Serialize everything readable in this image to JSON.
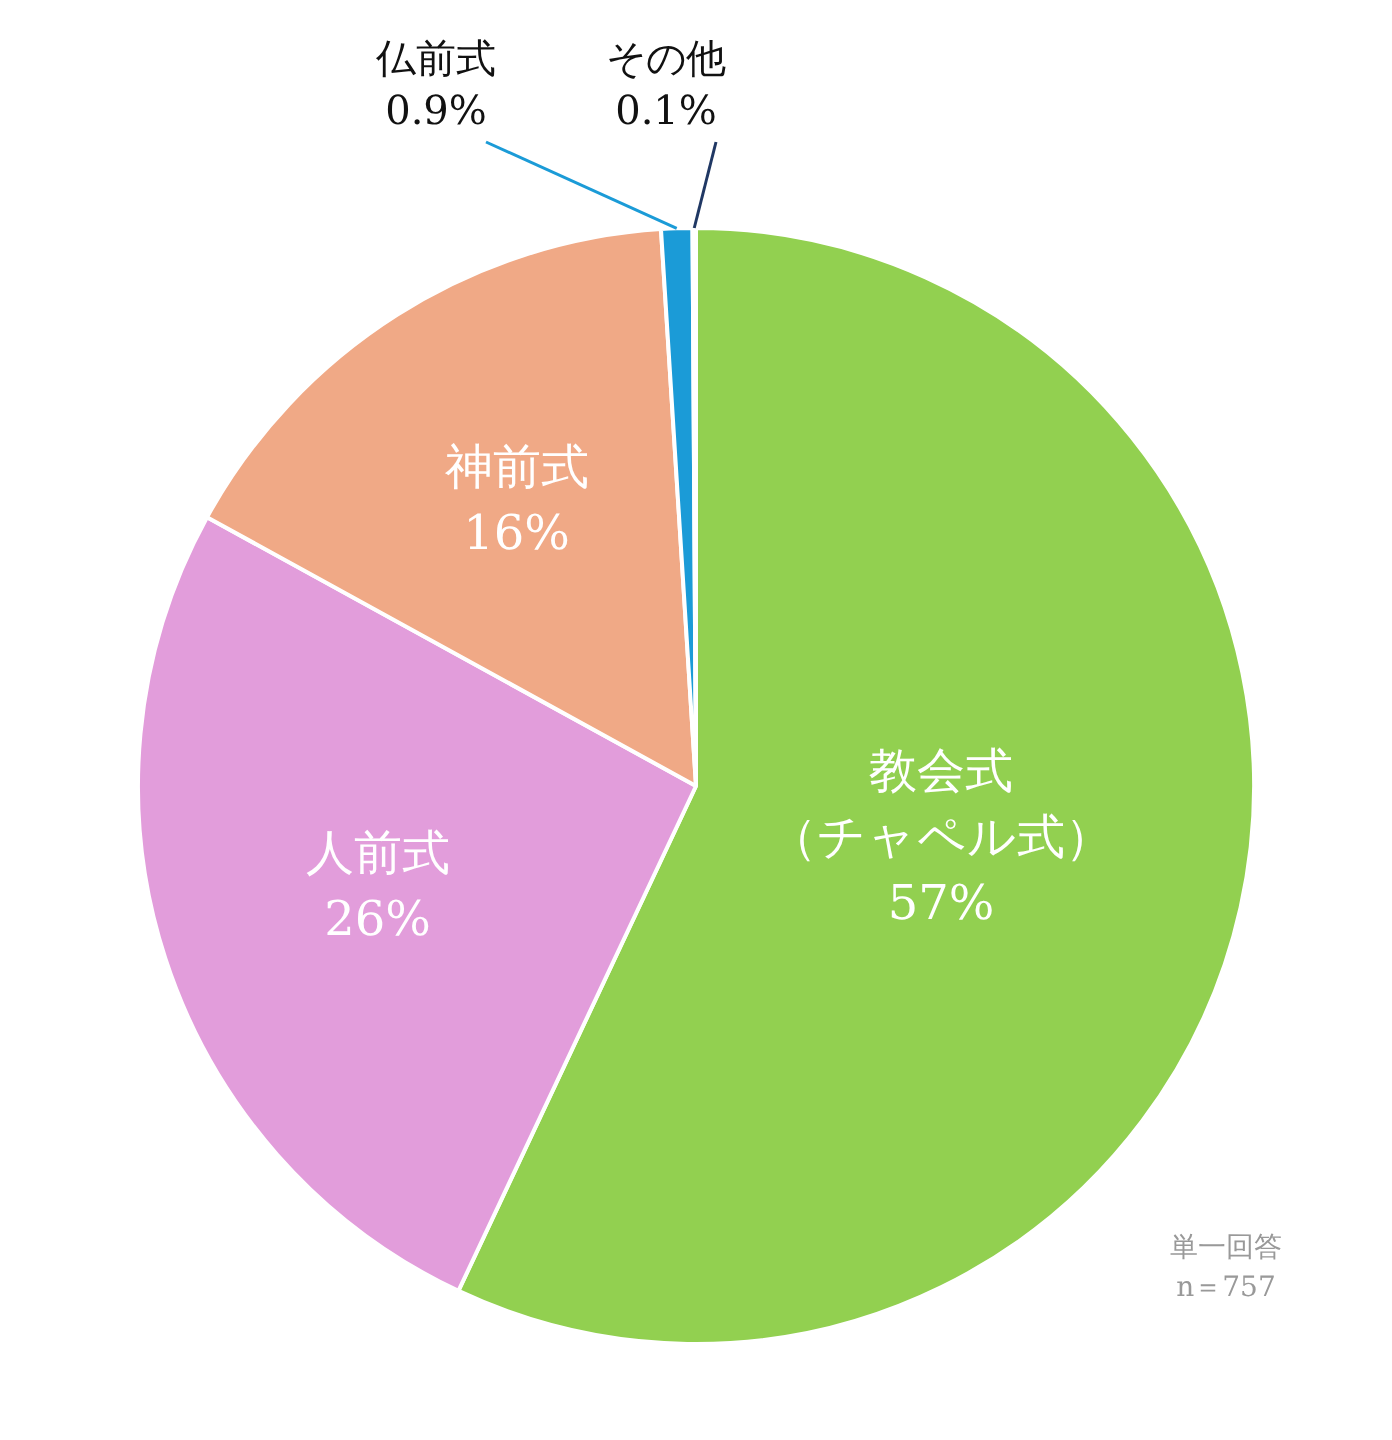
{
  "chart_data": {
    "type": "pie",
    "categories": [
      "教会式（チャペル式）",
      "人前式",
      "神前式",
      "仏前式",
      "その他"
    ],
    "values": [
      57,
      26,
      16,
      0.9,
      0.1
    ],
    "value_labels": [
      "57%",
      "26%",
      "16%",
      "0.9%",
      "0.1%"
    ],
    "colors": [
      "#92d050",
      "#e29ddb",
      "#f0a986",
      "#1b9bd7",
      "#203864"
    ],
    "legend": false,
    "annotations": [
      "単一回答",
      "n＝757"
    ]
  }
}
